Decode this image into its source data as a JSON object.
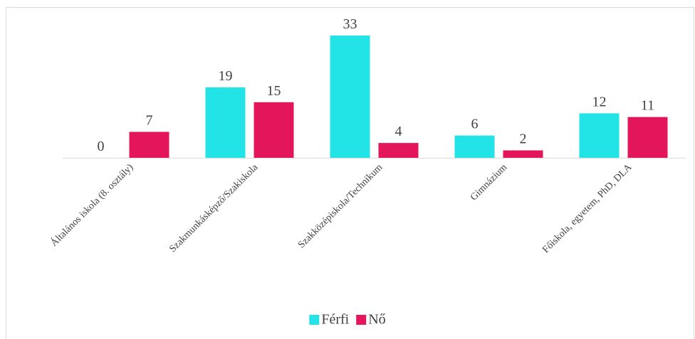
{
  "chart_data": {
    "type": "bar",
    "categories": [
      "Általános iskola (8. osztály)",
      "Szakmunkásképző/Szakiskola",
      "Szakközépiskola/Technikum",
      "Gimnázium",
      "Főiskola, egyetem, PhD, DLA"
    ],
    "series": [
      {
        "name": "Férfi",
        "color": "#22e3e6",
        "values": [
          0,
          19,
          33,
          6,
          12
        ]
      },
      {
        "name": "Nő",
        "color": "#e3165b",
        "values": [
          7,
          15,
          4,
          2,
          11
        ]
      }
    ],
    "legend": "bottom"
  }
}
